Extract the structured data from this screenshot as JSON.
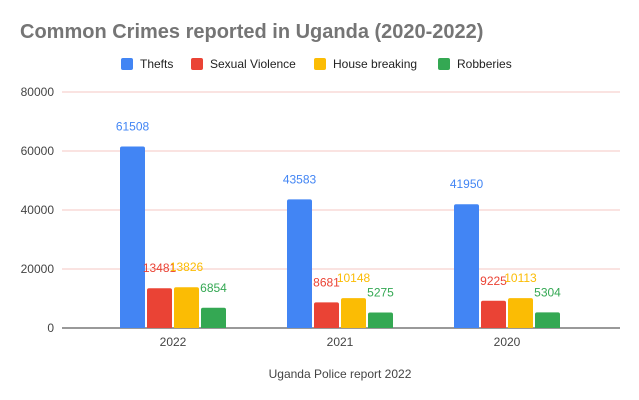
{
  "chart_data": {
    "type": "bar",
    "title": "Common Crimes reported in Uganda (2020-2022)",
    "xlabel": "Uganda Police report 2022",
    "ylabel": "",
    "categories": [
      "2022",
      "2021",
      "2020"
    ],
    "series": [
      {
        "name": "Thefts",
        "color": "#4285f4",
        "values": [
          61508,
          43583,
          41950
        ]
      },
      {
        "name": "Sexual Violence",
        "color": "#ea4335",
        "values": [
          13481,
          8681,
          9225
        ]
      },
      {
        "name": "House breaking",
        "color": "#fbbc04",
        "values": [
          13826,
          10148,
          10113
        ]
      },
      {
        "name": "Robberies",
        "color": "#34a853",
        "values": [
          6854,
          5275,
          5304
        ]
      }
    ],
    "ylim": [
      0,
      80000
    ],
    "yticks": [
      0,
      20000,
      40000,
      60000,
      80000
    ],
    "grid": true,
    "legend": "top",
    "data_labels": true
  }
}
